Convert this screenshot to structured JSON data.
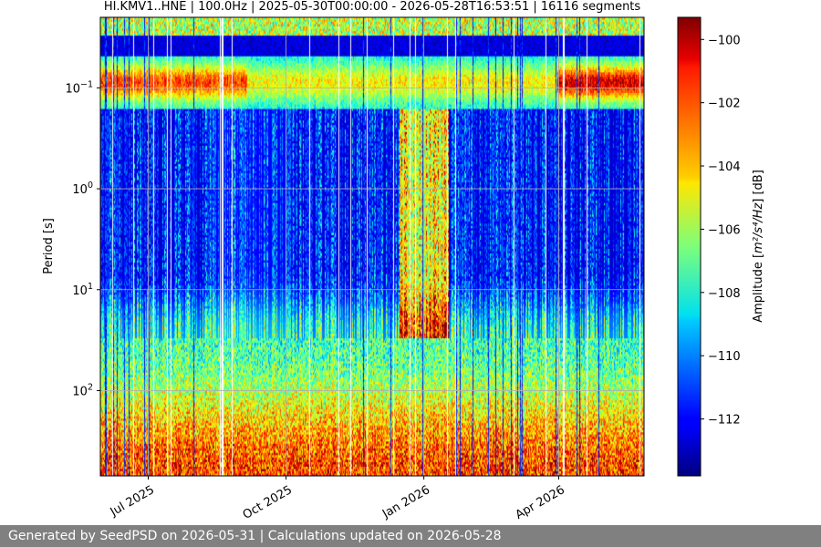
{
  "chart_data": {
    "type": "heatmap",
    "title": "HI.KMV1..HNE | 100.0Hz | 2025-05-30T00:00:00 - 2026-05-28T16:53:51 | 16116 segments",
    "ylabel": "Period [s]",
    "y_scale": "log",
    "y_inverted": true,
    "ylim": [
      0.02,
      700
    ],
    "y_ticks": [
      {
        "value": 0.1,
        "base": "10",
        "exp": "−1"
      },
      {
        "value": 1,
        "base": "10",
        "exp": "0"
      },
      {
        "value": 10,
        "base": "10",
        "exp": "1"
      },
      {
        "value": 100,
        "base": "10",
        "exp": "2"
      }
    ],
    "xlim": [
      "2025-05-30",
      "2026-05-28"
    ],
    "x_ticks": [
      {
        "date": "2025-07-01",
        "label": "Jul 2025"
      },
      {
        "date": "2025-10-01",
        "label": "Oct 2025"
      },
      {
        "date": "2026-01-01",
        "label": "Jan 2026"
      },
      {
        "date": "2026-04-01",
        "label": "Apr 2026"
      }
    ],
    "grid": true,
    "colormap": "jet",
    "colorbar": {
      "label_prefix": "Amplitude [",
      "label_math": "m²/s⁴/Hz",
      "label_suffix": "] [dB]",
      "range": [
        -113.8,
        -99.3
      ],
      "ticks": [
        -100,
        -102,
        -104,
        -106,
        -108,
        -110,
        -112
      ],
      "tick_labels": [
        "−100",
        "−102",
        "−104",
        "−106",
        "−108",
        "−110",
        "−112"
      ]
    }
  },
  "footer": {
    "text": "Generated by SeedPSD on 2026-05-31 | Calculations updated on 2026-05-28"
  }
}
